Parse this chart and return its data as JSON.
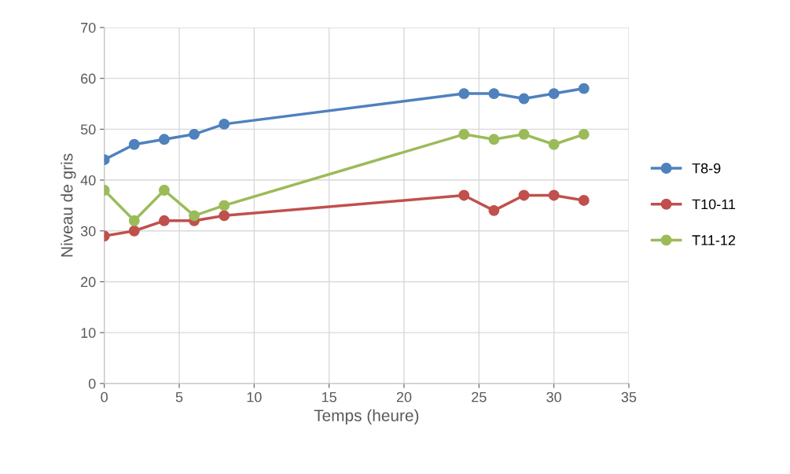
{
  "chart_data": {
    "type": "line",
    "xlabel": "Temps (heure)",
    "ylabel": "Niveau de gris",
    "x": [
      0,
      2,
      4,
      6,
      8,
      24,
      26,
      28,
      30,
      32
    ],
    "series": [
      {
        "name": "T8-9",
        "color": "#4f81bd",
        "values": [
          44,
          47,
          48,
          49,
          51,
          57,
          57,
          56,
          57,
          58
        ]
      },
      {
        "name": "T10-11",
        "color": "#c0504d",
        "values": [
          29,
          30,
          32,
          32,
          33,
          37,
          34,
          37,
          37,
          36
        ]
      },
      {
        "name": "T11-12",
        "color": "#9bbb59",
        "values": [
          38,
          32,
          38,
          33,
          35,
          49,
          48,
          49,
          47,
          49
        ]
      }
    ],
    "xlim": [
      0,
      35
    ],
    "xticks": [
      0,
      5,
      10,
      15,
      20,
      25,
      30,
      35
    ],
    "ylim": [
      0,
      70
    ],
    "yticks": [
      0,
      10,
      20,
      30,
      40,
      50,
      60,
      70
    ],
    "grid": true,
    "legend": "right",
    "marker": "circle",
    "line_style": "solid"
  }
}
